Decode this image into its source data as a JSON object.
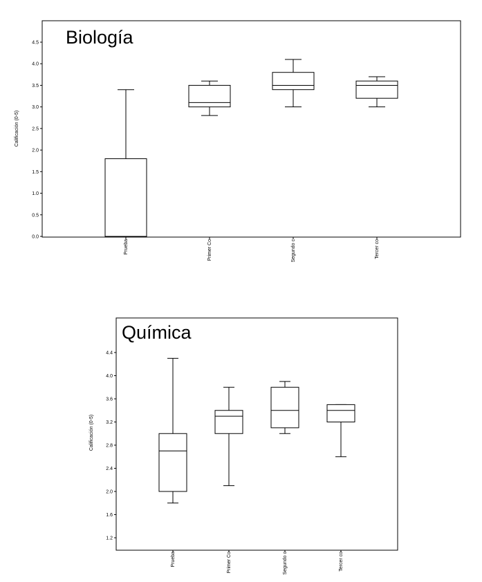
{
  "chart_data": [
    {
      "type": "boxplot",
      "title": "Biología",
      "ylabel": "Calificación (0-5)",
      "ylim": [
        0,
        5
      ],
      "yticks": [
        "0.0",
        "0.5",
        "1.0",
        "1.5",
        "2.0",
        "2.5",
        "3.0",
        "3.5",
        "4.0",
        "4.5"
      ],
      "categories": [
        "Prueba",
        "Primer Co",
        "Segundo c",
        "Tercer co"
      ],
      "boxes": [
        {
          "category": "Prueba",
          "min": 0.0,
          "q1": 0.0,
          "median": 0.0,
          "q3": 1.8,
          "max": 3.4
        },
        {
          "category": "Primer Co",
          "min": 2.8,
          "q1": 3.0,
          "median": 3.1,
          "q3": 3.5,
          "max": 3.6
        },
        {
          "category": "Segundo c",
          "min": 3.0,
          "q1": 3.4,
          "median": 3.5,
          "q3": 3.8,
          "max": 4.1
        },
        {
          "category": "Tercer co",
          "min": 3.0,
          "q1": 3.2,
          "median": 3.5,
          "q3": 3.6,
          "max": 3.7
        }
      ]
    },
    {
      "type": "boxplot",
      "title": "Química",
      "ylabel": "Calificación (0-5)",
      "ylim": [
        1.0,
        4.7
      ],
      "yticks": [
        "1.2",
        "1.6",
        "2.0",
        "2.4",
        "2.8",
        "3.2",
        "3.6",
        "4.0",
        "4.4"
      ],
      "categories": [
        "Prueba",
        "Primer Co",
        "Segundo c",
        "Tercer co"
      ],
      "boxes": [
        {
          "category": "Prueba",
          "min": 1.8,
          "q1": 2.0,
          "median": 2.7,
          "q3": 3.0,
          "max": 4.3
        },
        {
          "category": "Primer Co",
          "min": 2.1,
          "q1": 3.0,
          "median": 3.3,
          "q3": 3.4,
          "max": 3.8
        },
        {
          "category": "Segundo c",
          "min": 3.0,
          "q1": 3.1,
          "median": 3.4,
          "q3": 3.8,
          "max": 3.9
        },
        {
          "category": "Tercer co",
          "min": 2.6,
          "q1": 3.2,
          "median": 3.4,
          "q3": 3.5,
          "max": 3.5
        }
      ]
    }
  ]
}
